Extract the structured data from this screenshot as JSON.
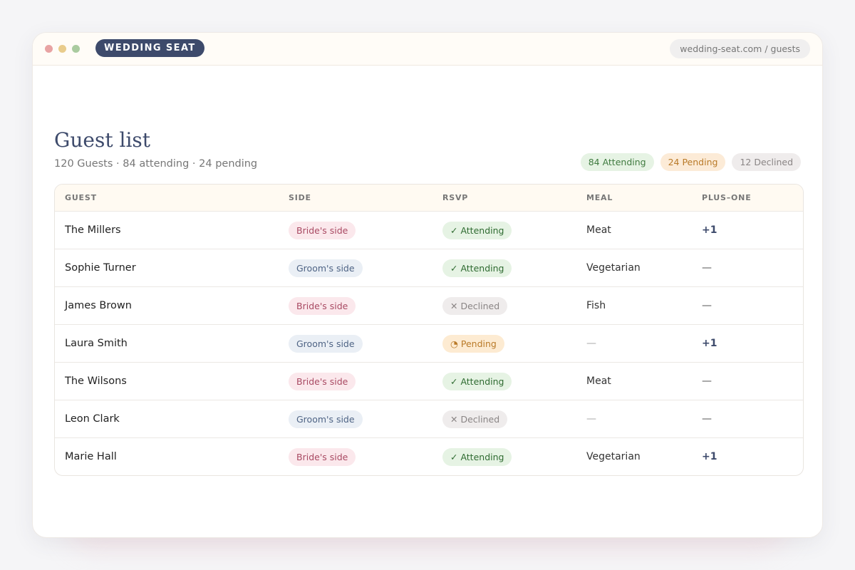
{
  "browser": {
    "brand": "WEDDING SEAT",
    "url": "wedding-seat.com / guests"
  },
  "header": {
    "title": "Guest list",
    "subtitle": "120 Guests · 84 attending · 24 pending",
    "badges": [
      "84 Attending",
      "24 Pending",
      "12 Declined"
    ]
  },
  "table": {
    "columns": [
      "GUEST",
      "SIDE",
      "RSVP",
      "MEAL",
      "PLUS–ONE"
    ],
    "rows": [
      [
        "The Millers",
        "Bride's side",
        "✓ Attending",
        "Meat",
        "+1"
      ],
      [
        "Sophie Turner",
        "Groom's side",
        "✓ Attending",
        "Vegetarian",
        "—"
      ],
      [
        "James Brown",
        "Bride's side",
        "✕ Declined",
        "Fish",
        "—"
      ],
      [
        "Laura Smith",
        "Groom's side",
        "◔ Pending",
        "—",
        "+1"
      ],
      [
        "The Wilsons",
        "Bride's side",
        "✓ Attending",
        "Meat",
        "—"
      ],
      [
        "Leon Clark",
        "Groom's side",
        "✕ Declined",
        "—",
        "—"
      ],
      [
        "Marie Hall",
        "Bride's side",
        "✓ Attending",
        "Vegetarian",
        "+1"
      ]
    ]
  }
}
